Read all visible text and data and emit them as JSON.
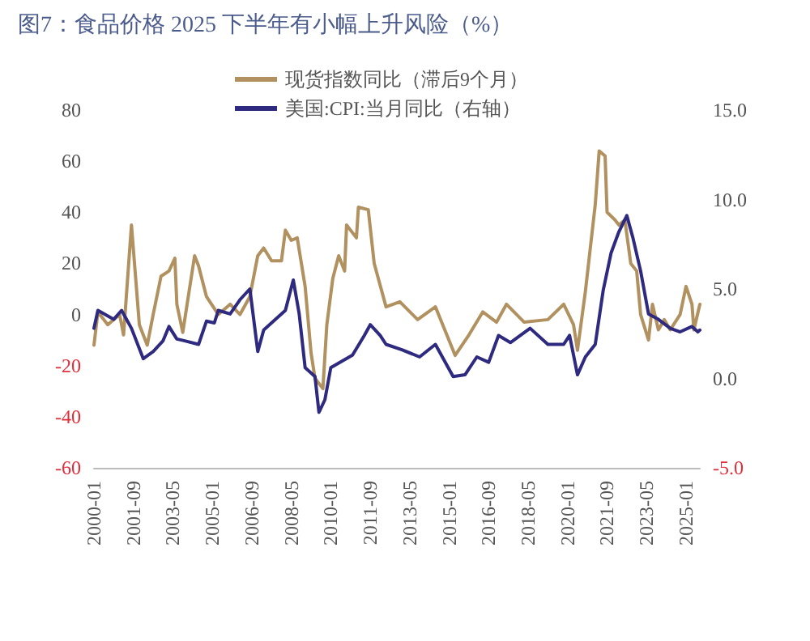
{
  "chart_data": {
    "type": "line",
    "title": "图7：食品价格 2025 下半年有小幅上升风险（%）",
    "legend": "top",
    "grid": false,
    "marker": "none",
    "line_style": "solid",
    "xlim": [
      "2000-01",
      "2025-08"
    ],
    "xticks": [
      "2000-01",
      "2001-09",
      "2003-05",
      "2005-01",
      "2006-09",
      "2008-05",
      "2010-01",
      "2011-09",
      "2013-05",
      "2015-01",
      "2016-09",
      "2018-05",
      "2020-01",
      "2021-09",
      "2023-05",
      "2025-01"
    ],
    "ylim": [
      -60,
      80
    ],
    "yticks": [
      -60,
      -40,
      -20,
      0,
      20,
      40,
      60,
      80
    ],
    "y2lim": [
      -5,
      15
    ],
    "y2ticks": [
      {
        "value": -5,
        "label": "-5.0"
      },
      {
        "value": 0,
        "label": "0.0"
      },
      {
        "value": 5,
        "label": "5.0"
      },
      {
        "value": 10,
        "label": "10.0"
      },
      {
        "value": 15,
        "label": "15.0"
      }
    ],
    "series": [
      {
        "name": "现货指数同比（滞后9个月）",
        "color": "#b0915f",
        "x": [
          "2000-01",
          "2000-03",
          "2000-08",
          "2001-02",
          "2001-04",
          "2001-08",
          "2001-12",
          "2002-04",
          "2002-07",
          "2002-11",
          "2003-03",
          "2003-06",
          "2003-07",
          "2003-10",
          "2004-04",
          "2004-06",
          "2004-10",
          "2005-04",
          "2005-10",
          "2006-03",
          "2006-08",
          "2006-12",
          "2007-03",
          "2007-07",
          "2007-12",
          "2008-02",
          "2008-05",
          "2008-08",
          "2008-12",
          "2009-03",
          "2009-05",
          "2009-09",
          "2009-11",
          "2010-02",
          "2010-05",
          "2010-08",
          "2010-09",
          "2011-02",
          "2011-03",
          "2011-08",
          "2011-11",
          "2012-05",
          "2012-12",
          "2013-09",
          "2014-06",
          "2015-04",
          "2015-11",
          "2016-06",
          "2017-01",
          "2017-06",
          "2018-03",
          "2019-03",
          "2019-11",
          "2020-04",
          "2020-06",
          "2020-10",
          "2021-03",
          "2021-05",
          "2021-08",
          "2021-09",
          "2022-01",
          "2022-03",
          "2022-06",
          "2022-09",
          "2022-12",
          "2023-02",
          "2023-06",
          "2023-08",
          "2023-11",
          "2024-02",
          "2024-05",
          "2024-10",
          "2025-01",
          "2025-04",
          "2025-05",
          "2025-08"
        ],
        "values": [
          -12,
          1,
          -4,
          0,
          -8,
          35,
          -4,
          -12,
          0,
          15,
          17,
          22,
          4,
          -7,
          23,
          19,
          7,
          0,
          4,
          0,
          7,
          23,
          26,
          21,
          21,
          33,
          29,
          30,
          11,
          -15,
          -25,
          -29,
          -4,
          14,
          23,
          17,
          35,
          30,
          42,
          41,
          20,
          3,
          5,
          -2,
          3,
          -16,
          -8,
          1,
          -3,
          4,
          -3,
          -2,
          4,
          -4,
          -14,
          9,
          43,
          64,
          62,
          40,
          37,
          35,
          37,
          20,
          17,
          0,
          -10,
          4,
          -6,
          -2,
          -6,
          0,
          11,
          4,
          -6,
          4
        ]
      },
      {
        "name": "美国:CPI:当月同比（右轴）",
        "color": "#2e2a7f",
        "axis": "y2",
        "x": [
          "2000-01",
          "2000-03",
          "2000-11",
          "2001-03",
          "2001-08",
          "2002-02",
          "2002-07",
          "2002-12",
          "2003-03",
          "2003-07",
          "2003-11",
          "2004-06",
          "2004-10",
          "2005-02",
          "2005-04",
          "2005-10",
          "2006-03",
          "2006-08",
          "2006-12",
          "2007-03",
          "2008-02",
          "2008-06",
          "2008-09",
          "2008-12",
          "2009-05",
          "2009-07",
          "2009-10",
          "2010-01",
          "2010-12",
          "2011-06",
          "2011-09",
          "2012-02",
          "2012-05",
          "2013-01",
          "2013-10",
          "2014-06",
          "2015-03",
          "2015-09",
          "2016-03",
          "2016-09",
          "2017-02",
          "2017-08",
          "2018-06",
          "2019-03",
          "2019-11",
          "2020-02",
          "2020-06",
          "2020-10",
          "2021-03",
          "2021-07",
          "2021-11",
          "2022-03",
          "2022-07",
          "2022-10",
          "2023-02",
          "2023-06",
          "2023-11",
          "2024-05",
          "2024-10",
          "2025-04",
          "2025-07",
          "2025-08"
        ],
        "values": [
          2.8,
          3.8,
          3.3,
          3.8,
          2.8,
          1.1,
          1.5,
          2.1,
          2.9,
          2.2,
          2.1,
          1.9,
          3.2,
          3.1,
          3.8,
          3.6,
          4.4,
          5.0,
          1.5,
          2.7,
          3.8,
          5.5,
          3.6,
          0.6,
          0.1,
          -1.9,
          -1.2,
          0.6,
          1.3,
          2.4,
          3.0,
          2.4,
          1.9,
          1.6,
          1.2,
          1.9,
          0.1,
          0.2,
          1.2,
          0.9,
          2.4,
          2.0,
          2.8,
          1.9,
          1.9,
          2.4,
          0.2,
          1.2,
          1.9,
          4.9,
          7.0,
          8.2,
          9.1,
          7.9,
          6.0,
          3.6,
          3.3,
          2.8,
          2.6,
          2.9,
          2.6,
          2.7
        ]
      }
    ]
  }
}
